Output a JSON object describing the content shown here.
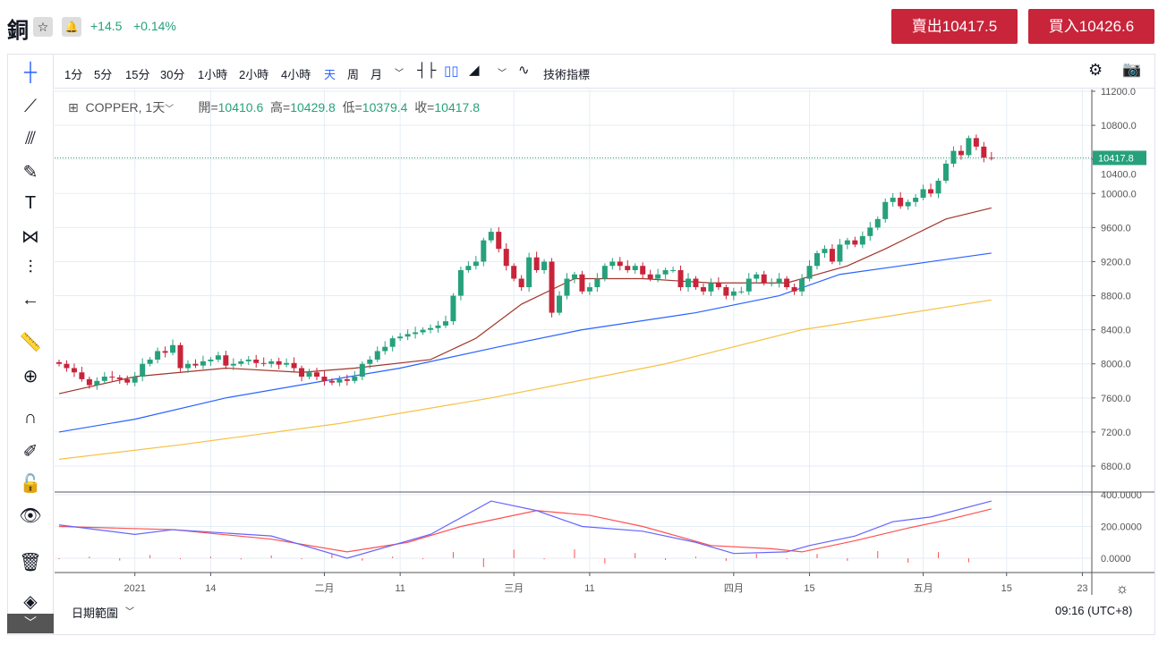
{
  "header": {
    "title": "銅",
    "star_icon": "☆",
    "bell_icon": "🔔",
    "change": "+14.5",
    "change_pct": "+0.14%",
    "sell_label": "賣出10417.5",
    "buy_label": "買入10426.6"
  },
  "toolbar": {
    "intervals": [
      "1分",
      "5分",
      "15分",
      "30分",
      "1小時",
      "2小時",
      "4小時",
      "天",
      "周",
      "月"
    ],
    "active_interval": "天",
    "indicators_label": "技術指標"
  },
  "legend": {
    "symbol": "COPPER, 1天",
    "open_label": "開=",
    "open": "10410.6",
    "high_label": "高=",
    "high": "10429.8",
    "low_label": "低=",
    "low": "10379.4",
    "close_label": "收=",
    "close": "10417.8"
  },
  "footer": {
    "date_range": "日期範圍",
    "time": "09:16 (UTC+8)"
  },
  "colors": {
    "up": "#26a17b",
    "down": "#c8243a",
    "ma_short": "#a0352a",
    "ma_mid": "#2962ff",
    "ma_long": "#f5c242",
    "macd": "#6464ff",
    "signal": "#ff5050"
  },
  "chart_data": {
    "type": "candlestick",
    "price_axis": {
      "ticks": [
        "11200.0",
        "10800.0",
        "10400.0",
        "10000.0",
        "9600.0",
        "9200.0",
        "8800.0",
        "8400.0",
        "8000.0",
        "7600.0",
        "7200.0",
        "6800.0"
      ],
      "range": [
        6800,
        11200
      ],
      "last_price": "10417.8"
    },
    "x_ticks": [
      {
        "label": "2021",
        "index": 10
      },
      {
        "label": "14",
        "index": 20
      },
      {
        "label": "二月",
        "index": 35
      },
      {
        "label": "11",
        "index": 45
      },
      {
        "label": "三月",
        "index": 60
      },
      {
        "label": "11",
        "index": 70
      },
      {
        "label": "四月",
        "index": 89
      },
      {
        "label": "15",
        "index": 99
      },
      {
        "label": "五月",
        "index": 114
      },
      {
        "label": "15",
        "index": 125
      },
      {
        "label": "23",
        "index": 135
      }
    ],
    "closes": [
      8000,
      7950,
      7900,
      7820,
      7750,
      7800,
      7850,
      7840,
      7820,
      7780,
      7850,
      8000,
      8050,
      8150,
      8130,
      8220,
      7950,
      8000,
      7980,
      8030,
      8050,
      8100,
      7980,
      8000,
      8030,
      8050,
      8010,
      8000,
      8030,
      7990,
      8010,
      7950,
      7850,
      7900,
      7850,
      7800,
      7780,
      7820,
      7800,
      7850,
      8000,
      8050,
      8150,
      8200,
      8300,
      8320,
      8350,
      8370,
      8400,
      8420,
      8450,
      8500,
      8800,
      9100,
      9150,
      9200,
      9450,
      9550,
      9350,
      9150,
      9000,
      8900,
      9250,
      9100,
      9200,
      8600,
      8800,
      9000,
      9050,
      8850,
      8900,
      9000,
      9150,
      9200,
      9150,
      9100,
      9150,
      9050,
      9000,
      9050,
      9100,
      9100,
      8900,
      9000,
      8900,
      8850,
      8950,
      8900,
      8800,
      8850,
      8850,
      9000,
      9050,
      8950,
      8950,
      9000,
      8900,
      8850,
      9000,
      9150,
      9300,
      9350,
      9200,
      9400,
      9450,
      9400,
      9500,
      9600,
      9700,
      9900,
      9950,
      9850,
      9900,
      9950,
      10050,
      10000,
      10150,
      10350,
      10500,
      10450,
      10650,
      10550,
      10420,
      10417.8
    ],
    "ma_short": [
      [
        0,
        7650
      ],
      [
        10,
        7850
      ],
      [
        22,
        7950
      ],
      [
        32,
        7900
      ],
      [
        39,
        7950
      ],
      [
        49,
        8050
      ],
      [
        55,
        8300
      ],
      [
        61,
        8700
      ],
      [
        68,
        9000
      ],
      [
        77,
        9000
      ],
      [
        86,
        8950
      ],
      [
        96,
        8950
      ],
      [
        104,
        9150
      ],
      [
        109,
        9350
      ],
      [
        117,
        9700
      ],
      [
        123,
        9830
      ]
    ],
    "ma_mid": [
      [
        0,
        7200
      ],
      [
        10,
        7350
      ],
      [
        22,
        7600
      ],
      [
        35,
        7800
      ],
      [
        45,
        7950
      ],
      [
        58,
        8200
      ],
      [
        69,
        8400
      ],
      [
        84,
        8600
      ],
      [
        95,
        8800
      ],
      [
        103,
        9050
      ],
      [
        115,
        9200
      ],
      [
        123,
        9300
      ]
    ],
    "ma_long": [
      [
        0,
        6880
      ],
      [
        16,
        7050
      ],
      [
        37,
        7300
      ],
      [
        57,
        7600
      ],
      [
        80,
        8000
      ],
      [
        98,
        8400
      ],
      [
        123,
        8750
      ]
    ],
    "macd_axis": {
      "ticks": [
        "400.0000",
        "200.0000",
        "0.0000"
      ]
    },
    "macd": [
      [
        0,
        210
      ],
      [
        10,
        150
      ],
      [
        15,
        180
      ],
      [
        28,
        140
      ],
      [
        38,
        0
      ],
      [
        49,
        150
      ],
      [
        57,
        360
      ],
      [
        63,
        300
      ],
      [
        69,
        200
      ],
      [
        77,
        170
      ],
      [
        84,
        100
      ],
      [
        89,
        30
      ],
      [
        96,
        40
      ],
      [
        99,
        80
      ],
      [
        105,
        140
      ],
      [
        110,
        230
      ],
      [
        115,
        260
      ],
      [
        123,
        360
      ]
    ],
    "signal": [
      [
        0,
        200
      ],
      [
        15,
        180
      ],
      [
        28,
        120
      ],
      [
        38,
        40
      ],
      [
        46,
        100
      ],
      [
        53,
        200
      ],
      [
        63,
        300
      ],
      [
        70,
        270
      ],
      [
        77,
        200
      ],
      [
        86,
        80
      ],
      [
        94,
        60
      ],
      [
        98,
        40
      ],
      [
        105,
        110
      ],
      [
        112,
        190
      ],
      [
        117,
        240
      ],
      [
        123,
        310
      ]
    ]
  }
}
